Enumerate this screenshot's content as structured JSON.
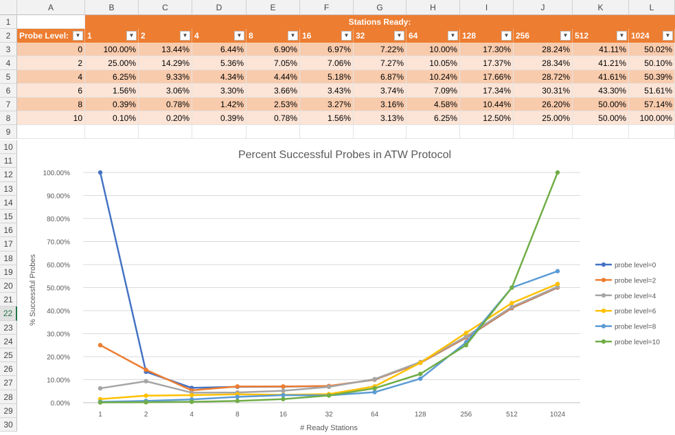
{
  "spreadsheet": {
    "columns": [
      "A",
      "B",
      "C",
      "D",
      "E",
      "F",
      "G",
      "H",
      "I",
      "J",
      "K",
      "L"
    ],
    "rows": [
      "1",
      "2",
      "3",
      "4",
      "5",
      "6",
      "7",
      "8",
      "9",
      "10",
      "11",
      "12",
      "13",
      "14",
      "15",
      "16",
      "17",
      "18",
      "19",
      "20",
      "21",
      "22",
      "23",
      "24",
      "25",
      "26",
      "27",
      "28",
      "29",
      "30"
    ],
    "selected_row": "22",
    "banner": "Stations Ready:",
    "probe_header": "Probe Level:",
    "station_headers": [
      "1",
      "2",
      "4",
      "8",
      "16",
      "32",
      "64",
      "128",
      "256",
      "512",
      "1024"
    ],
    "data_rows": [
      {
        "level": "0",
        "values": [
          "100.00%",
          "13.44%",
          "6.44%",
          "6.90%",
          "6.97%",
          "7.22%",
          "10.00%",
          "17.30%",
          "28.24%",
          "41.11%",
          "50.02%"
        ]
      },
      {
        "level": "2",
        "values": [
          "25.00%",
          "14.29%",
          "5.36%",
          "7.05%",
          "7.06%",
          "7.27%",
          "10.05%",
          "17.37%",
          "28.34%",
          "41.21%",
          "50.10%"
        ]
      },
      {
        "level": "4",
        "values": [
          "6.25%",
          "9.33%",
          "4.34%",
          "4.44%",
          "5.18%",
          "6.87%",
          "10.24%",
          "17.66%",
          "28.72%",
          "41.61%",
          "50.39%"
        ]
      },
      {
        "level": "6",
        "values": [
          "1.56%",
          "3.06%",
          "3.30%",
          "3.66%",
          "3.43%",
          "3.74%",
          "7.09%",
          "17.34%",
          "30.31%",
          "43.30%",
          "51.61%"
        ]
      },
      {
        "level": "8",
        "values": [
          "0.39%",
          "0.78%",
          "1.42%",
          "2.53%",
          "3.27%",
          "3.16%",
          "4.58%",
          "10.44%",
          "26.20%",
          "50.00%",
          "57.14%"
        ]
      },
      {
        "level": "10",
        "values": [
          "0.10%",
          "0.20%",
          "0.39%",
          "0.78%",
          "1.56%",
          "3.13%",
          "6.25%",
          "12.50%",
          "25.00%",
          "50.00%",
          "100.00%"
        ]
      }
    ]
  },
  "chart_data": {
    "type": "line",
    "title": "Percent Successful Probes in ATW Protocol",
    "xlabel": "# Ready Stations",
    "ylabel": "% Successful Probes",
    "categories": [
      "1",
      "2",
      "4",
      "8",
      "16",
      "32",
      "64",
      "128",
      "256",
      "512",
      "1024"
    ],
    "ylim": [
      0,
      100
    ],
    "yticks": [
      "0.00%",
      "10.00%",
      "20.00%",
      "30.00%",
      "40.00%",
      "50.00%",
      "60.00%",
      "70.00%",
      "80.00%",
      "90.00%",
      "100.00%"
    ],
    "grid": true,
    "legend_position": "right",
    "series": [
      {
        "name": "probe level=0",
        "color": "#4472c4",
        "values": [
          100.0,
          13.44,
          6.44,
          6.9,
          6.97,
          7.22,
          10.0,
          17.3,
          28.24,
          41.11,
          50.02
        ]
      },
      {
        "name": "probe level=2",
        "color": "#ed7d31",
        "values": [
          25.0,
          14.29,
          5.36,
          7.05,
          7.06,
          7.27,
          10.05,
          17.37,
          28.34,
          41.21,
          50.1
        ]
      },
      {
        "name": "probe level=4",
        "color": "#a5a5a5",
        "values": [
          6.25,
          9.33,
          4.34,
          4.44,
          5.18,
          6.87,
          10.24,
          17.66,
          28.72,
          41.61,
          50.39
        ]
      },
      {
        "name": "probe level=6",
        "color": "#ffc000",
        "values": [
          1.56,
          3.06,
          3.3,
          3.66,
          3.43,
          3.74,
          7.09,
          17.34,
          30.31,
          43.3,
          51.61
        ]
      },
      {
        "name": "probe level=8",
        "color": "#5b9bd5",
        "values": [
          0.39,
          0.78,
          1.42,
          2.53,
          3.27,
          3.16,
          4.58,
          10.44,
          26.2,
          50.0,
          57.14
        ]
      },
      {
        "name": "probe level=10",
        "color": "#70ad47",
        "values": [
          0.1,
          0.2,
          0.39,
          0.78,
          1.56,
          3.13,
          6.25,
          12.5,
          25.0,
          50.0,
          100.0
        ]
      }
    ]
  }
}
